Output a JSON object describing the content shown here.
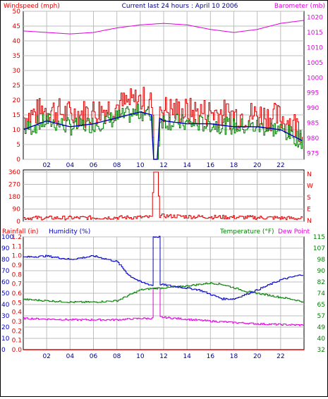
{
  "title": "Current last 24 hours : April 10 2006",
  "colors": {
    "windspeed": "#e00000",
    "barometer": "#e000e0",
    "humidity": "#0000c0",
    "temperature": "#008000",
    "dewpoint": "#e000e0",
    "grid": "#bdbdbd"
  },
  "x_ticks": [
    "02",
    "04",
    "06",
    "08",
    "10",
    "12",
    "14",
    "16",
    "18",
    "20",
    "22"
  ],
  "panel1": {
    "left_label": "Windspeed (mph)",
    "right_label": "Barometer (mb)",
    "left_ticks": [
      "50",
      "45",
      "40",
      "35",
      "30",
      "25",
      "20",
      "15",
      "10",
      "5",
      "0"
    ],
    "right_ticks": [
      "1020",
      "1015",
      "1010",
      "1005",
      "1000",
      "995",
      "990",
      "985",
      "980",
      "975"
    ]
  },
  "panel2": {
    "left_ticks": [
      "360",
      "270",
      "180",
      "90",
      "0"
    ],
    "right_ticks": [
      "N",
      "W",
      "S",
      "E",
      "N"
    ]
  },
  "panel3": {
    "rain_label": "Rainfall (in)",
    "humidity_label": "Humidity (%)",
    "temperature_label": "Temperature (°F)",
    "dewpoint_label": "Dew Point",
    "humidity_ticks": [
      "100",
      "90",
      "80",
      "70",
      "60",
      "50",
      "40",
      "30",
      "20",
      "10",
      "0"
    ],
    "rain_ticks": [
      "1.2",
      "1.1",
      "1.0",
      "0.9",
      "0.8",
      "0.7",
      "0.6",
      "0.5",
      "0.4",
      "0.3",
      "0.2",
      "0.1",
      "0.0"
    ],
    "temp_ticks": [
      "115",
      "107",
      "98",
      "90",
      "82",
      "74",
      "65",
      "57",
      "49",
      "40",
      "32"
    ]
  },
  "chart_data": [
    {
      "type": "line",
      "x_range_hours": [
        0,
        24
      ],
      "series": [
        {
          "name": "Barometer (mb)",
          "axis": "right",
          "x": [
            0,
            2,
            4,
            6,
            8,
            10,
            12,
            14,
            16,
            18,
            20,
            22,
            24
          ],
          "values": [
            1015.5,
            1015,
            1014.5,
            1015,
            1016.5,
            1017.5,
            1018,
            1017.5,
            1016,
            1015,
            1016,
            1018,
            1019
          ]
        },
        {
          "name": "Windspeed (mph)",
          "axis": "left",
          "x": [
            0,
            2,
            4,
            6,
            8,
            10,
            11,
            11.1,
            11.5,
            11.6,
            12,
            14,
            16,
            18,
            20,
            22,
            24
          ],
          "values": [
            11,
            14,
            12,
            13,
            15,
            17,
            16,
            0,
            0,
            15,
            14,
            13,
            13,
            12,
            12,
            11,
            7
          ]
        }
      ],
      "ylim_left": [
        0,
        50
      ],
      "ylim_right": [
        973,
        1022
      ]
    },
    {
      "type": "line",
      "x_range_hours": [
        0,
        24
      ],
      "series": [
        {
          "name": "Wind direction",
          "x": [
            0,
            4,
            8,
            11,
            11.1,
            11.5,
            11.6,
            14,
            18,
            22,
            24
          ],
          "values": [
            25,
            25,
            28,
            30,
            360,
            360,
            40,
            35,
            30,
            25,
            20
          ]
        }
      ],
      "ylim": [
        0,
        380
      ]
    },
    {
      "type": "line",
      "x_range_hours": [
        0,
        24
      ],
      "series": [
        {
          "name": "Humidity (%)",
          "axis": "left",
          "x": [
            0,
            2,
            4,
            6,
            8,
            9,
            10,
            11,
            11.05,
            11.6,
            11.65,
            13,
            15,
            17,
            18,
            20,
            22,
            24
          ],
          "values": [
            82,
            83,
            80,
            83,
            78,
            66,
            60,
            57,
            100,
            100,
            58,
            56,
            53,
            45,
            45,
            53,
            62,
            67
          ]
        },
        {
          "name": "Temperature (°F)",
          "axis": "right",
          "x": [
            0,
            2,
            4,
            6,
            8,
            10,
            11,
            13,
            15,
            16,
            17,
            19,
            21,
            23,
            24
          ],
          "values": [
            69,
            68,
            67,
            67,
            68,
            76,
            77,
            78,
            80,
            81,
            80,
            75,
            72,
            69,
            67
          ]
        },
        {
          "name": "Dew Point",
          "axis": "right",
          "x": [
            0,
            4,
            6,
            8,
            10,
            11,
            11.05,
            11.6,
            11.65,
            13,
            16,
            20,
            24
          ],
          "values": [
            55,
            54,
            54,
            54,
            55,
            55,
            77,
            77,
            56,
            55,
            53,
            51,
            50
          ]
        },
        {
          "name": "Rainfall (in)",
          "axis": "rain",
          "x": [
            0,
            24
          ],
          "values": [
            0,
            0
          ]
        }
      ],
      "ylim_humidity": [
        0,
        100
      ],
      "ylim_temp": [
        32,
        115
      ],
      "ylim_rain": [
        0,
        1.2
      ]
    }
  ]
}
